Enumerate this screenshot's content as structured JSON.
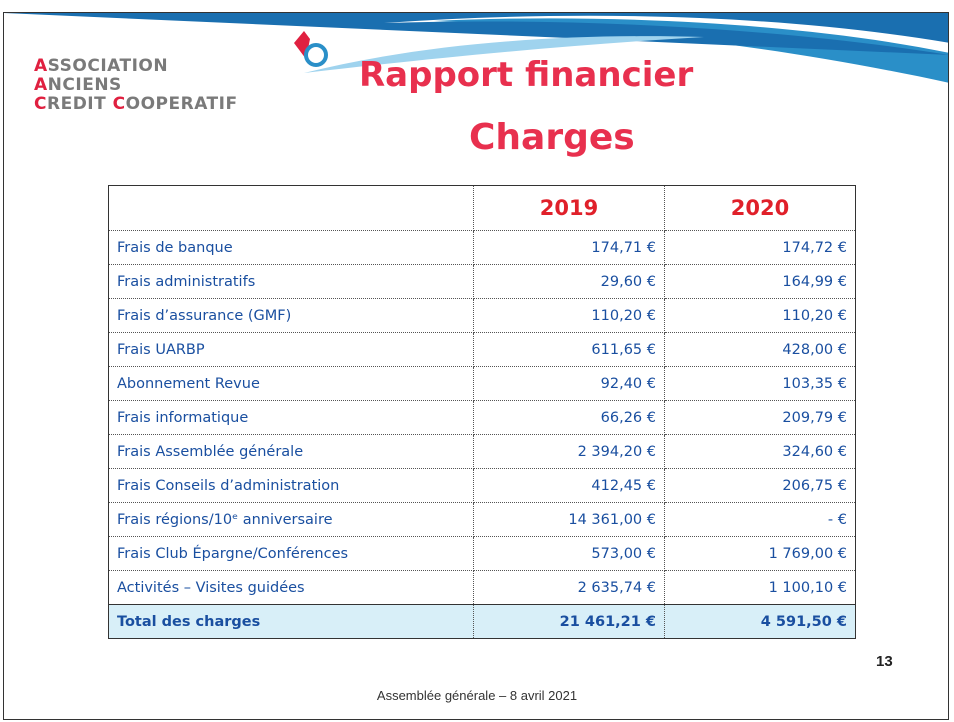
{
  "logo": {
    "line1": "ASSOCIATION",
    "line2": "ANCIENS",
    "line3a": "CREDIT",
    "line3b": "COOPERATIF"
  },
  "title": "Rapport financier",
  "subtitle": "Charges",
  "table": {
    "columns": [
      "2019",
      "2020"
    ],
    "rows": [
      [
        "Frais de banque",
        "174,71 €",
        "174,72 €"
      ],
      [
        "Frais administratifs",
        "29,60 €",
        "164,99 €"
      ],
      [
        "Frais d’assurance (GMF)",
        "110,20 €",
        "110,20 €"
      ],
      [
        "Frais UARBP",
        "611,65 €",
        "428,00 €"
      ],
      [
        "Abonnement Revue",
        "92,40 €",
        "103,35 €"
      ],
      [
        "Frais informatique",
        "66,26 €",
        "209,79 €"
      ],
      [
        "Frais Assemblée générale",
        "2 394,20 €",
        "324,60 €"
      ],
      [
        "Frais Conseils d’administration",
        "412,45 €",
        "206,75 €"
      ],
      [
        "Frais régions/10ᵉ anniversaire",
        "14 361,00 €",
        "- €"
      ],
      [
        "Frais Club Épargne/Conférences",
        "573,00 €",
        "1 769,00 €"
      ],
      [
        "Activités – Visites guidées",
        "2 635,74 €",
        "1 100,10 €"
      ]
    ],
    "total": [
      "Total des charges",
      "21 461,21 €",
      "4 591,50 €"
    ]
  },
  "footer": "Assemblée générale – 8 avril 2021",
  "page_number": "13"
}
